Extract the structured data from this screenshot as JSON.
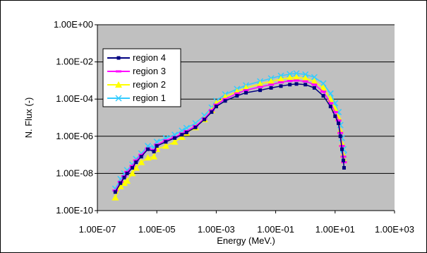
{
  "chart_data": {
    "type": "scatter",
    "title": "",
    "xlabel": "Energy (MeV.)",
    "ylabel": "N. Flux (-)",
    "xscale": "log",
    "yscale": "log",
    "xlim": [
      1e-07,
      1000
    ],
    "ylim": [
      1e-10,
      1
    ],
    "x_ticks": [
      "1.00E-07",
      "1.00E-05",
      "1.00E-03",
      "1.00E-01",
      "1.00E+01",
      "1.00E+03"
    ],
    "y_ticks": [
      "1.00E+00",
      "1.00E-02",
      "1.00E-04",
      "1.00E-06",
      "1.00E-08",
      "1.00E-10"
    ],
    "grid": "horizontal major",
    "plot_background": "#c0c0c0",
    "legend_position": "upper-left inside plot",
    "x": [
      4e-07,
      6e-07,
      8e-07,
      1e-06,
      1.5e-06,
      2e-06,
      3e-06,
      5e-06,
      8e-06,
      1e-05,
      2e-05,
      4e-05,
      7e-05,
      0.0001,
      0.0002,
      0.0004,
      0.0007,
      0.001,
      0.002,
      0.005,
      0.01,
      0.03,
      0.07,
      0.15,
      0.3,
      0.5,
      1,
      2,
      4,
      7,
      10,
      13,
      15,
      17,
      19,
      20
    ],
    "series": [
      {
        "name": "region 4",
        "color": "#000080",
        "marker": "square",
        "values": [
          1e-09,
          3e-09,
          6e-09,
          1e-08,
          2e-08,
          4e-08,
          8e-08,
          2e-07,
          1.5e-07,
          3e-07,
          5e-07,
          8e-07,
          1.2e-06,
          1.6e-06,
          3e-06,
          8e-06,
          2e-05,
          4e-05,
          8e-05,
          0.00015,
          0.00022,
          0.0003,
          0.0004,
          0.0005,
          0.0006,
          0.00065,
          0.0006,
          0.0004,
          0.00015,
          4e-05,
          1.2e-05,
          5e-06,
          1e-06,
          2e-07,
          5e-08,
          2e-08
        ]
      },
      {
        "name": "region 3",
        "color": "#ff00ff",
        "marker": "dash",
        "values": [
          1.2e-09,
          3.5e-09,
          7e-09,
          1.2e-08,
          2.5e-08,
          5e-08,
          1e-07,
          2.2e-07,
          1.8e-07,
          3.5e-07,
          6e-07,
          9e-07,
          1.4e-06,
          1.9e-06,
          3.5e-06,
          9e-06,
          2.5e-05,
          5e-05,
          0.0001,
          0.0002,
          0.0003,
          0.00045,
          0.0006,
          0.0008,
          0.00095,
          0.001,
          0.0009,
          0.0006,
          0.00025,
          6e-05,
          2e-05,
          7e-06,
          1.5e-06,
          3e-07,
          8e-08,
          4e-08
        ]
      },
      {
        "name": "region 2",
        "color": "#ffff00",
        "marker": "triangle",
        "values": [
          5e-10,
          2e-09,
          3e-09,
          4e-09,
          1e-08,
          2e-08,
          4e-08,
          7e-08,
          8e-08,
          2e-07,
          3e-07,
          5e-07,
          9e-07,
          1.5e-06,
          3e-06,
          8e-06,
          2.5e-05,
          6e-05,
          0.00013,
          0.00025,
          0.0004,
          0.00065,
          0.0009,
          0.0012,
          0.0014,
          0.0015,
          0.0013,
          0.0009,
          0.0004,
          0.0001,
          3e-05,
          1e-05,
          2e-06,
          4e-07,
          1e-07,
          5e-08
        ]
      },
      {
        "name": "region 1",
        "color": "#33ccff",
        "marker": "x",
        "values": [
          1.5e-09,
          5e-09,
          1e-08,
          1.5e-08,
          3e-08,
          6e-08,
          1.2e-07,
          3e-07,
          2.5e-07,
          5e-07,
          8e-07,
          1.2e-06,
          2e-06,
          2.8e-06,
          5e-06,
          1.3e-05,
          3.5e-05,
          8e-05,
          0.00018,
          0.00035,
          0.00055,
          0.0009,
          0.0013,
          0.0018,
          0.0022,
          0.0024,
          0.0021,
          0.0015,
          0.0007,
          0.0002,
          6e-05,
          2e-05,
          4e-06,
          8e-07,
          2e-07,
          1e-07
        ]
      }
    ]
  }
}
